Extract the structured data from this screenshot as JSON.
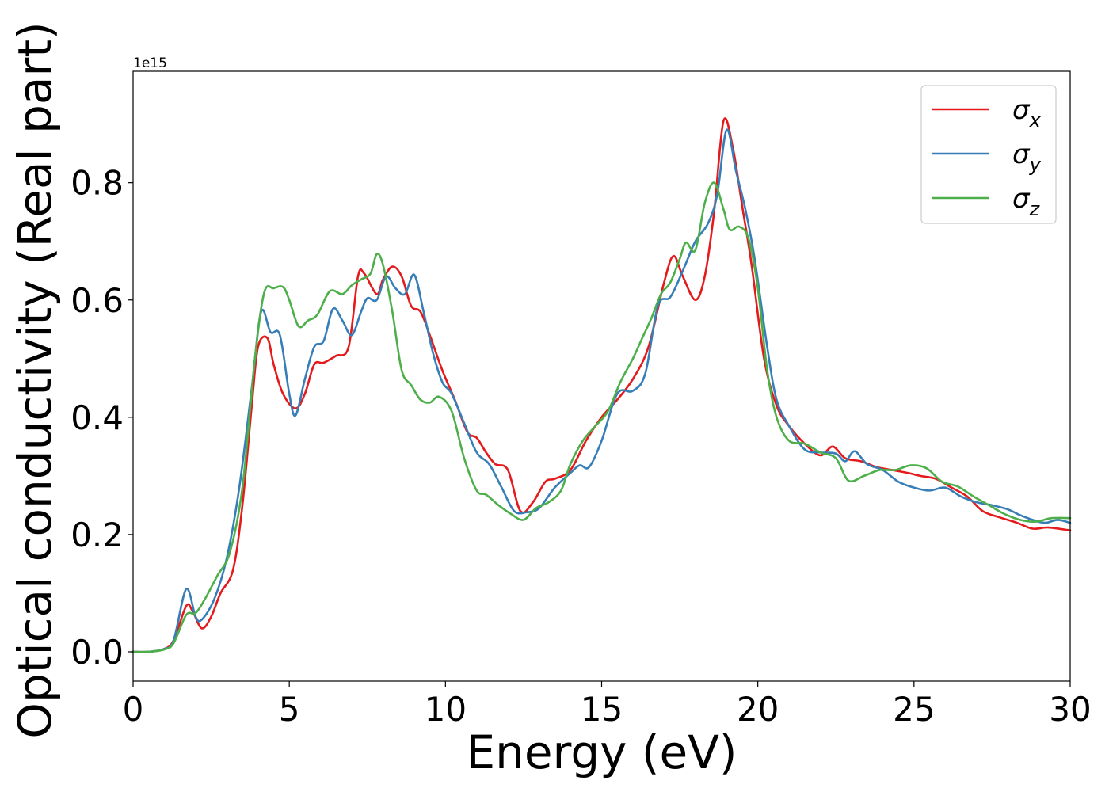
{
  "chart_data": {
    "type": "line",
    "title": "",
    "xlabel": "Energy (eV)",
    "ylabel": "Optical conductivity (Real part)",
    "y_offset_label": "1e15",
    "xlim": [
      0,
      30
    ],
    "ylim": [
      -0.05,
      0.99
    ],
    "x_ticks": [
      "0",
      "5",
      "10",
      "15",
      "20",
      "25",
      "30"
    ],
    "y_ticks": [
      "0.0",
      "0.2",
      "0.4",
      "0.6",
      "0.8"
    ],
    "grid": false,
    "legend_position": "top-right",
    "series": [
      {
        "name": "σx",
        "legend_base": "σ",
        "legend_sub": "x",
        "color": "#e41a1c",
        "points": [
          [
            0,
            0
          ],
          [
            0.5,
            0
          ],
          [
            1.0,
            0.005
          ],
          [
            1.3,
            0.02
          ],
          [
            1.7,
            0.078
          ],
          [
            1.9,
            0.07
          ],
          [
            2.2,
            0.04
          ],
          [
            2.5,
            0.06
          ],
          [
            2.8,
            0.1
          ],
          [
            3.2,
            0.14
          ],
          [
            3.5,
            0.25
          ],
          [
            3.8,
            0.42
          ],
          [
            4.0,
            0.52
          ],
          [
            4.3,
            0.535
          ],
          [
            4.5,
            0.49
          ],
          [
            4.8,
            0.44
          ],
          [
            5.2,
            0.415
          ],
          [
            5.5,
            0.44
          ],
          [
            5.8,
            0.49
          ],
          [
            6.1,
            0.493
          ],
          [
            6.5,
            0.505
          ],
          [
            6.9,
            0.52
          ],
          [
            7.2,
            0.64
          ],
          [
            7.4,
            0.645
          ],
          [
            7.8,
            0.61
          ],
          [
            8.0,
            0.635
          ],
          [
            8.3,
            0.657
          ],
          [
            8.6,
            0.64
          ],
          [
            8.9,
            0.59
          ],
          [
            9.2,
            0.58
          ],
          [
            9.5,
            0.54
          ],
          [
            9.9,
            0.48
          ],
          [
            10.3,
            0.43
          ],
          [
            10.7,
            0.375
          ],
          [
            11.0,
            0.365
          ],
          [
            11.3,
            0.34
          ],
          [
            11.6,
            0.32
          ],
          [
            12.0,
            0.31
          ],
          [
            12.4,
            0.24
          ],
          [
            12.8,
            0.255
          ],
          [
            13.2,
            0.29
          ],
          [
            13.5,
            0.295
          ],
          [
            14.0,
            0.31
          ],
          [
            14.5,
            0.36
          ],
          [
            15.0,
            0.4
          ],
          [
            15.5,
            0.43
          ],
          [
            16.0,
            0.465
          ],
          [
            16.5,
            0.52
          ],
          [
            17.0,
            0.63
          ],
          [
            17.3,
            0.675
          ],
          [
            17.6,
            0.64
          ],
          [
            18.0,
            0.6
          ],
          [
            18.3,
            0.64
          ],
          [
            18.6,
            0.75
          ],
          [
            18.9,
            0.905
          ],
          [
            19.2,
            0.86
          ],
          [
            19.5,
            0.76
          ],
          [
            19.8,
            0.66
          ],
          [
            20.2,
            0.5
          ],
          [
            20.6,
            0.42
          ],
          [
            21.0,
            0.385
          ],
          [
            21.5,
            0.355
          ],
          [
            22.0,
            0.335
          ],
          [
            22.4,
            0.35
          ],
          [
            22.8,
            0.33
          ],
          [
            23.3,
            0.325
          ],
          [
            23.8,
            0.315
          ],
          [
            24.3,
            0.31
          ],
          [
            24.8,
            0.305
          ],
          [
            25.2,
            0.3
          ],
          [
            25.7,
            0.295
          ],
          [
            26.2,
            0.28
          ],
          [
            26.7,
            0.265
          ],
          [
            27.2,
            0.24
          ],
          [
            27.7,
            0.23
          ],
          [
            28.3,
            0.22
          ],
          [
            28.8,
            0.21
          ],
          [
            29.3,
            0.212
          ],
          [
            30.0,
            0.207
          ]
        ]
      },
      {
        "name": "σy",
        "legend_base": "σ",
        "legend_sub": "y",
        "color": "#377eb8",
        "points": [
          [
            0,
            0
          ],
          [
            0.5,
            0
          ],
          [
            1.0,
            0.005
          ],
          [
            1.3,
            0.02
          ],
          [
            1.7,
            0.107
          ],
          [
            2.0,
            0.06
          ],
          [
            2.2,
            0.055
          ],
          [
            2.6,
            0.09
          ],
          [
            3.0,
            0.16
          ],
          [
            3.4,
            0.28
          ],
          [
            3.8,
            0.45
          ],
          [
            4.1,
            0.58
          ],
          [
            4.4,
            0.545
          ],
          [
            4.7,
            0.54
          ],
          [
            5.0,
            0.44
          ],
          [
            5.2,
            0.403
          ],
          [
            5.5,
            0.465
          ],
          [
            5.8,
            0.52
          ],
          [
            6.1,
            0.53
          ],
          [
            6.4,
            0.585
          ],
          [
            6.7,
            0.565
          ],
          [
            7.0,
            0.54
          ],
          [
            7.3,
            0.58
          ],
          [
            7.5,
            0.603
          ],
          [
            7.8,
            0.6
          ],
          [
            8.1,
            0.64
          ],
          [
            8.4,
            0.62
          ],
          [
            8.7,
            0.61
          ],
          [
            9.0,
            0.643
          ],
          [
            9.3,
            0.58
          ],
          [
            9.6,
            0.51
          ],
          [
            9.9,
            0.46
          ],
          [
            10.2,
            0.44
          ],
          [
            10.6,
            0.39
          ],
          [
            11.0,
            0.34
          ],
          [
            11.4,
            0.32
          ],
          [
            11.8,
            0.28
          ],
          [
            12.2,
            0.24
          ],
          [
            12.6,
            0.238
          ],
          [
            13.0,
            0.245
          ],
          [
            13.5,
            0.28
          ],
          [
            14.0,
            0.305
          ],
          [
            14.3,
            0.318
          ],
          [
            14.6,
            0.315
          ],
          [
            15.0,
            0.36
          ],
          [
            15.5,
            0.44
          ],
          [
            16.0,
            0.445
          ],
          [
            16.4,
            0.475
          ],
          [
            16.8,
            0.59
          ],
          [
            17.2,
            0.605
          ],
          [
            17.6,
            0.65
          ],
          [
            18.0,
            0.7
          ],
          [
            18.4,
            0.73
          ],
          [
            18.7,
            0.78
          ],
          [
            19.0,
            0.89
          ],
          [
            19.3,
            0.82
          ],
          [
            19.6,
            0.755
          ],
          [
            19.9,
            0.67
          ],
          [
            20.3,
            0.52
          ],
          [
            20.6,
            0.43
          ],
          [
            21.0,
            0.385
          ],
          [
            21.5,
            0.345
          ],
          [
            22.0,
            0.34
          ],
          [
            22.5,
            0.338
          ],
          [
            22.8,
            0.325
          ],
          [
            23.1,
            0.342
          ],
          [
            23.5,
            0.32
          ],
          [
            24.0,
            0.31
          ],
          [
            24.5,
            0.29
          ],
          [
            25.0,
            0.28
          ],
          [
            25.5,
            0.275
          ],
          [
            26.0,
            0.28
          ],
          [
            26.5,
            0.265
          ],
          [
            27.0,
            0.255
          ],
          [
            27.5,
            0.25
          ],
          [
            28.0,
            0.243
          ],
          [
            28.4,
            0.233
          ],
          [
            28.8,
            0.225
          ],
          [
            29.2,
            0.22
          ],
          [
            29.6,
            0.225
          ],
          [
            30.0,
            0.22
          ]
        ]
      },
      {
        "name": "σz",
        "legend_base": "σ",
        "legend_sub": "z",
        "color": "#4daf4a",
        "points": [
          [
            0,
            0
          ],
          [
            0.5,
            0
          ],
          [
            1.0,
            0.004
          ],
          [
            1.3,
            0.015
          ],
          [
            1.7,
            0.063
          ],
          [
            2.0,
            0.066
          ],
          [
            2.3,
            0.09
          ],
          [
            2.7,
            0.13
          ],
          [
            3.1,
            0.17
          ],
          [
            3.5,
            0.28
          ],
          [
            3.9,
            0.5
          ],
          [
            4.2,
            0.613
          ],
          [
            4.5,
            0.62
          ],
          [
            4.8,
            0.622
          ],
          [
            5.0,
            0.6
          ],
          [
            5.3,
            0.555
          ],
          [
            5.6,
            0.565
          ],
          [
            5.9,
            0.575
          ],
          [
            6.3,
            0.615
          ],
          [
            6.7,
            0.61
          ],
          [
            7.0,
            0.625
          ],
          [
            7.3,
            0.635
          ],
          [
            7.6,
            0.645
          ],
          [
            7.8,
            0.678
          ],
          [
            8.0,
            0.66
          ],
          [
            8.3,
            0.58
          ],
          [
            8.6,
            0.48
          ],
          [
            8.9,
            0.455
          ],
          [
            9.2,
            0.43
          ],
          [
            9.5,
            0.425
          ],
          [
            9.8,
            0.435
          ],
          [
            10.2,
            0.41
          ],
          [
            10.6,
            0.33
          ],
          [
            11.0,
            0.275
          ],
          [
            11.3,
            0.268
          ],
          [
            11.7,
            0.25
          ],
          [
            12.1,
            0.235
          ],
          [
            12.5,
            0.225
          ],
          [
            12.9,
            0.245
          ],
          [
            13.3,
            0.255
          ],
          [
            13.7,
            0.275
          ],
          [
            14.0,
            0.32
          ],
          [
            14.4,
            0.36
          ],
          [
            14.8,
            0.385
          ],
          [
            15.2,
            0.41
          ],
          [
            15.6,
            0.46
          ],
          [
            16.0,
            0.5
          ],
          [
            16.3,
            0.535
          ],
          [
            16.6,
            0.57
          ],
          [
            16.9,
            0.61
          ],
          [
            17.2,
            0.63
          ],
          [
            17.5,
            0.67
          ],
          [
            17.7,
            0.698
          ],
          [
            18.0,
            0.685
          ],
          [
            18.3,
            0.765
          ],
          [
            18.6,
            0.8
          ],
          [
            18.9,
            0.755
          ],
          [
            19.1,
            0.72
          ],
          [
            19.4,
            0.725
          ],
          [
            19.7,
            0.705
          ],
          [
            20.0,
            0.62
          ],
          [
            20.3,
            0.48
          ],
          [
            20.6,
            0.4
          ],
          [
            21.0,
            0.36
          ],
          [
            21.5,
            0.355
          ],
          [
            22.0,
            0.34
          ],
          [
            22.5,
            0.33
          ],
          [
            22.9,
            0.292
          ],
          [
            23.4,
            0.3
          ],
          [
            23.9,
            0.31
          ],
          [
            24.4,
            0.31
          ],
          [
            24.9,
            0.318
          ],
          [
            25.4,
            0.313
          ],
          [
            25.9,
            0.29
          ],
          [
            26.4,
            0.282
          ],
          [
            26.9,
            0.265
          ],
          [
            27.4,
            0.25
          ],
          [
            27.9,
            0.235
          ],
          [
            28.4,
            0.225
          ],
          [
            28.9,
            0.222
          ],
          [
            29.4,
            0.228
          ],
          [
            30.0,
            0.228
          ]
        ]
      }
    ]
  }
}
